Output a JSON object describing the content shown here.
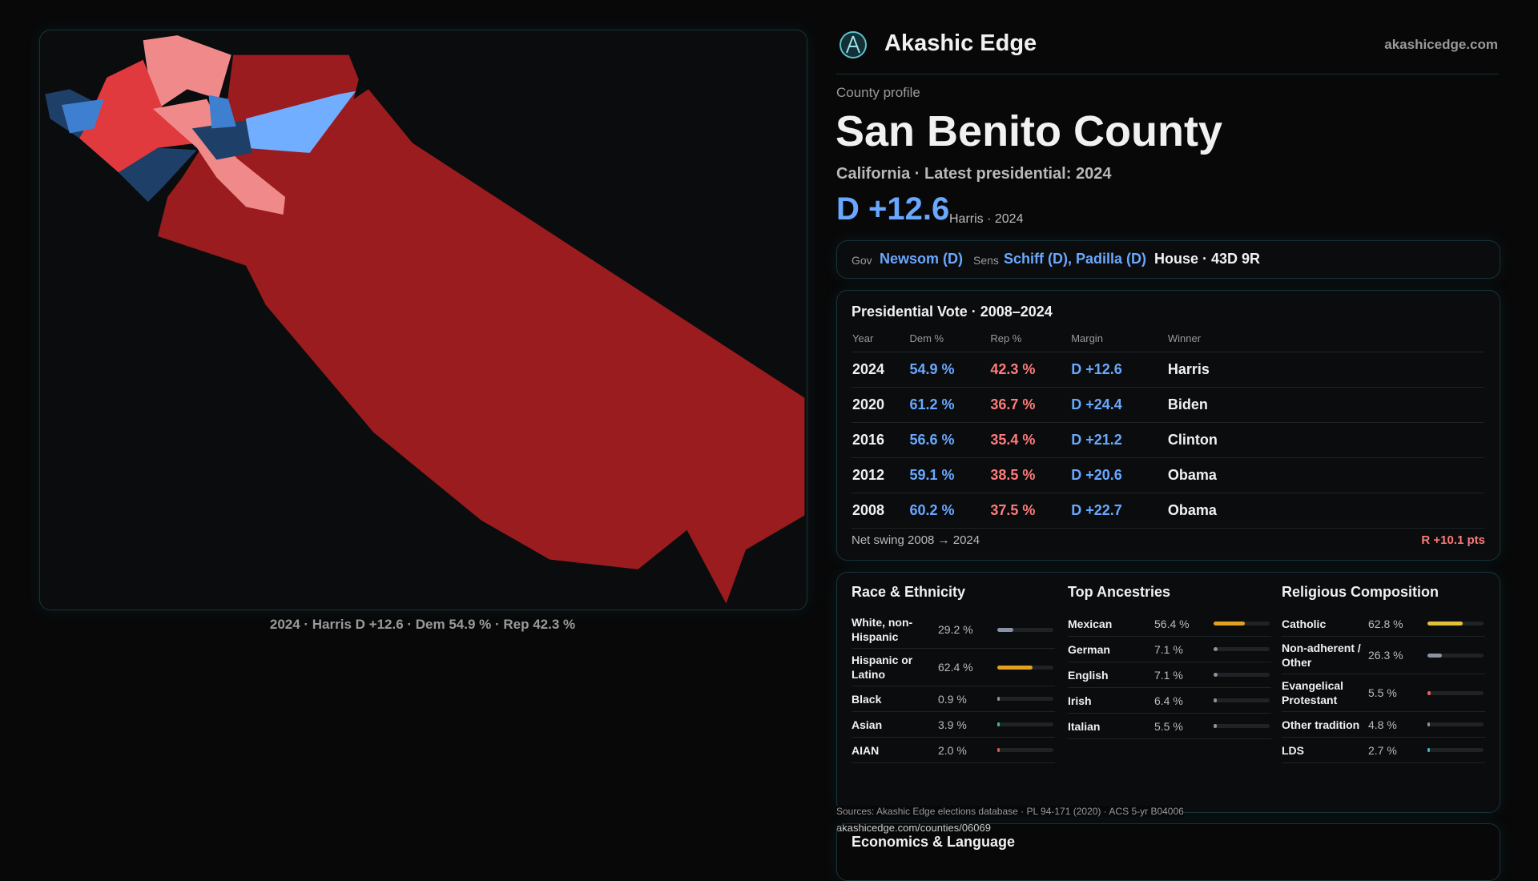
{
  "header": {
    "brand": "Akashic Edge",
    "site": "akashicedge.com"
  },
  "map": {
    "caption": "2024 · Harris D +12.6 · Dem 54.9 % · Rep 42.3 %"
  },
  "profile": {
    "eyebrow": "County profile",
    "title": "San Benito County",
    "subtitle": "California · Latest presidential: 2024",
    "margin": "D +12.6",
    "margin_note": "Harris · 2024"
  },
  "officials": {
    "gov_label": "Gov",
    "gov": "Newsom (D)",
    "sens_label": "Sens",
    "sens": "Schiff (D), Padilla (D)",
    "house": "House · 43D 9R"
  },
  "presidential": {
    "title": "Presidential Vote · 2008–2024",
    "columns": [
      "Year",
      "Dem %",
      "Rep %",
      "Margin",
      "Winner"
    ],
    "rows": [
      [
        "2024",
        "54.9 %",
        "42.3 %",
        "D +12.6",
        "Harris"
      ],
      [
        "2020",
        "61.2 %",
        "36.7 %",
        "D +24.4",
        "Biden"
      ],
      [
        "2016",
        "56.6 %",
        "35.4 %",
        "D +21.2",
        "Clinton"
      ],
      [
        "2012",
        "59.1 %",
        "38.5 %",
        "D +20.6",
        "Obama"
      ],
      [
        "2008",
        "60.2 %",
        "37.5 %",
        "D +22.7",
        "Obama"
      ]
    ],
    "net_swing_label": "Net swing 2008 → 2024",
    "net_swing": "R +10.1 pts"
  },
  "demographics": [
    {
      "title": "Race & Ethnicity",
      "items": [
        {
          "label": "White, non-Hispanic",
          "value": 29.2,
          "value_label": "29.2 %",
          "color": "#8a93a5"
        },
        {
          "label": "Hispanic or Latino",
          "value": 62.4,
          "value_label": "62.4 %",
          "color": "#e3a11e"
        },
        {
          "label": "Black",
          "value": 0.9,
          "value_label": "0.9 %",
          "color": "#8a93a5"
        },
        {
          "label": "Asian",
          "value": 3.9,
          "value_label": "3.9 %",
          "color": "#3fbf7f"
        },
        {
          "label": "AIAN",
          "value": 2.0,
          "value_label": "2.0 %",
          "color": "#d0604a"
        }
      ]
    },
    {
      "title": "Top Ancestries",
      "items": [
        {
          "label": "Mexican",
          "value": 56.4,
          "value_label": "56.4 %",
          "color": "#e3a11e"
        },
        {
          "label": "German",
          "value": 7.1,
          "value_label": "7.1 %",
          "color": "#8a93a5"
        },
        {
          "label": "English",
          "value": 7.1,
          "value_label": "7.1 %",
          "color": "#8a93a5"
        },
        {
          "label": "Irish",
          "value": 6.4,
          "value_label": "6.4 %",
          "color": "#8a93a5"
        },
        {
          "label": "Italian",
          "value": 5.5,
          "value_label": "5.5 %",
          "color": "#8a93a5"
        }
      ]
    },
    {
      "title": "Religious Composition",
      "items": [
        {
          "label": "Catholic",
          "value": 62.8,
          "value_label": "62.8 %",
          "color": "#e3c13a"
        },
        {
          "label": "Non-adherent / Other",
          "value": 26.3,
          "value_label": "26.3 %",
          "color": "#8a93a5"
        },
        {
          "label": "Evangelical Protestant",
          "value": 5.5,
          "value_label": "5.5 %",
          "color": "#e06060"
        },
        {
          "label": "Other tradition",
          "value": 4.8,
          "value_label": "4.8 %",
          "color": "#8a93a5"
        },
        {
          "label": "LDS",
          "value": 2.7,
          "value_label": "2.7 %",
          "color": "#3fb7c4"
        }
      ]
    }
  ],
  "sources": {
    "text": "Sources: Akashic Edge elections database · PL 94-171 (2020) · ACS 5-yr B04006",
    "url": "akashicedge.com/counties/06069"
  },
  "economics": {
    "title": "Economics & Language"
  }
}
